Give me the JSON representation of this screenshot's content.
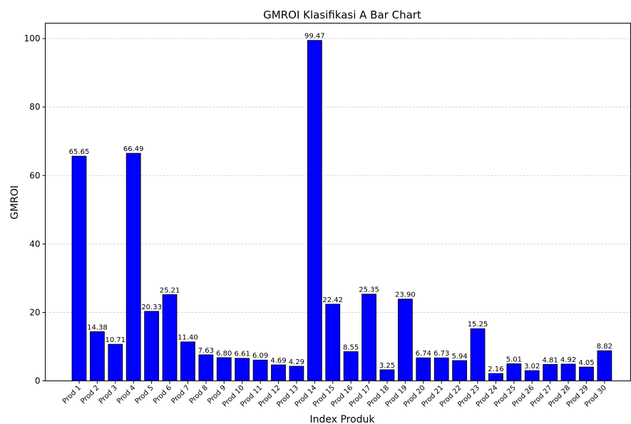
{
  "chart_data": {
    "type": "bar",
    "title": "GMROI Klasifikasi A Bar Chart",
    "x_label": "Index Produk",
    "y_label": "GMROI",
    "categories": [
      "Prod 1",
      "Prod 2",
      "Prod 3",
      "Prod 4",
      "Prod 5",
      "Prod 6",
      "Prod 7",
      "Prod 8",
      "Prod 9",
      "Prod 10",
      "Prod 11",
      "Prod 12",
      "Prod 13",
      "Prod 14",
      "Prod 15",
      "Prod 16",
      "Prod 17",
      "Prod 18",
      "Prod 19",
      "Prod 20",
      "Prod 21",
      "Prod 22",
      "Prod 23",
      "Prod 24",
      "Prod 25",
      "Prod 26",
      "Prod 27",
      "Prod 28",
      "Prod 29",
      "Prod 30"
    ],
    "values": [
      65.65,
      14.38,
      10.71,
      66.49,
      20.33,
      25.21,
      11.4,
      7.63,
      6.8,
      6.61,
      6.09,
      4.69,
      4.29,
      99.47,
      22.42,
      8.55,
      25.35,
      3.25,
      23.9,
      6.74,
      6.73,
      5.94,
      15.25,
      2.16,
      5.01,
      3.02,
      4.81,
      4.92,
      4.05,
      8.82
    ],
    "value_labels": [
      "65.65",
      "14.38",
      "10.71",
      "66.49",
      "20.33",
      "25.21",
      "11.40",
      "7.63",
      "6.80",
      "6.61",
      "6.09",
      "4.69",
      "4.29",
      "99.47",
      "22.42",
      "8.55",
      "25.35",
      "3.25",
      "23.90",
      "6.74",
      "6.73",
      "5.94",
      "15.25",
      "2.16",
      "5.01",
      "3.02",
      "4.81",
      "4.92",
      "4.05",
      "8.82"
    ],
    "color": "#0000ff",
    "ylim": [
      0,
      104.5
    ],
    "yticks": [
      0,
      20,
      40,
      60,
      80,
      100
    ],
    "grid": true
  }
}
